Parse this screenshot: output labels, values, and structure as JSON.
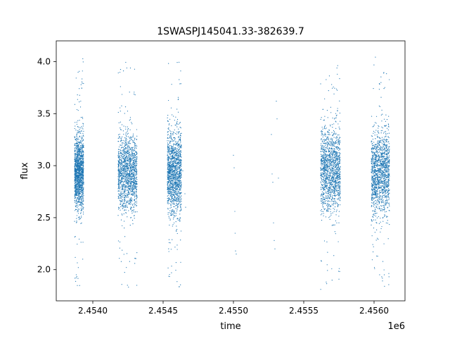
{
  "chart_data": {
    "type": "scatter",
    "title": "1SWASPJ145041.33-382639.7",
    "xlabel": "time",
    "ylabel": "flux",
    "x_offset_label": "1e6",
    "xlim": [
      2453740,
      2456220
    ],
    "ylim": [
      1.7,
      4.2
    ],
    "x_ticks": [
      2454000,
      2454500,
      2455000,
      2455500,
      2456000
    ],
    "x_tick_labels": [
      "2.4540",
      "2.4545",
      "2.4550",
      "2.4555",
      "2.4560"
    ],
    "y_ticks": [
      2.0,
      2.5,
      3.0,
      3.5,
      4.0
    ],
    "y_tick_labels": [
      "2.0",
      "2.5",
      "3.0",
      "3.5",
      "4.0"
    ],
    "marker_color": "#1f77b4",
    "grid": false,
    "clusters": [
      {
        "x_start": 2453870,
        "x_end": 2453935,
        "center": 2.93,
        "spread": 0.18,
        "y_min": 1.82,
        "y_max": 4.03
      },
      {
        "x_start": 2454180,
        "x_end": 2454315,
        "center": 2.93,
        "spread": 0.18,
        "y_min": 1.83,
        "y_max": 4.01
      },
      {
        "x_start": 2454530,
        "x_end": 2454630,
        "center": 2.93,
        "spread": 0.2,
        "y_min": 1.82,
        "y_max": 4.01
      },
      {
        "x_start": 2455620,
        "x_end": 2455760,
        "center": 2.96,
        "spread": 0.2,
        "y_min": 1.81,
        "y_max": 4.02
      },
      {
        "x_start": 2455980,
        "x_end": 2456110,
        "center": 2.93,
        "spread": 0.2,
        "y_min": 1.83,
        "y_max": 4.07
      }
    ],
    "sparse_points": [
      [
        2454640,
        2.95
      ],
      [
        2454655,
        2.73
      ],
      [
        2454660,
        2.6
      ],
      [
        2455000,
        3.1
      ],
      [
        2455005,
        2.98
      ],
      [
        2455010,
        2.56
      ],
      [
        2455012,
        2.35
      ],
      [
        2455015,
        2.18
      ],
      [
        2455020,
        2.15
      ],
      [
        2455270,
        3.3
      ],
      [
        2455275,
        2.92
      ],
      [
        2455280,
        2.84
      ],
      [
        2455285,
        2.45
      ],
      [
        2455290,
        2.28
      ],
      [
        2455295,
        2.2
      ],
      [
        2455305,
        3.62
      ],
      [
        2455310,
        3.45
      ],
      [
        2455320,
        2.88
      ]
    ]
  }
}
